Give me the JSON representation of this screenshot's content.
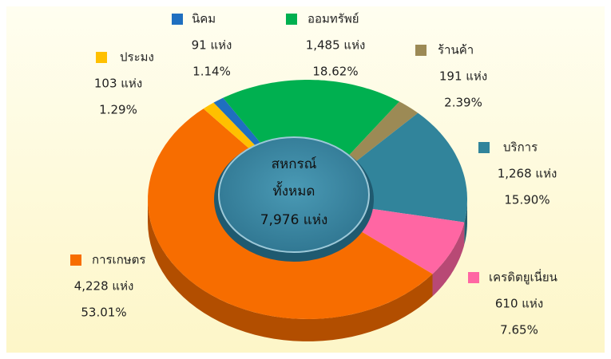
{
  "chart_data": {
    "type": "donut",
    "categories": [
      "นิคม",
      "ออมทรัพย์",
      "ร้านค้า",
      "บริการ",
      "เครดิตยูเนี่ยน",
      "การเกษตร",
      "ประมง"
    ],
    "values": [
      1.14,
      18.62,
      2.39,
      15.9,
      7.65,
      53.01,
      1.29
    ],
    "value_labels": [
      "1.14%",
      "18.62%",
      "2.39%",
      "15.90%",
      "7.65%",
      "53.01%",
      "1.29%"
    ],
    "counts": [
      91,
      1485,
      191,
      1268,
      610,
      4228,
      103
    ],
    "count_labels": [
      "91 แห่ง",
      "1,485 แห่ง",
      "191 แห่ง",
      "1,268 แห่ง",
      "610 แห่ง",
      "4,228 แห่ง",
      "103 แห่ง"
    ],
    "colors": [
      "#1f6fc0",
      "#00b050",
      "#9c8a55",
      "#31849b",
      "#ff66a3",
      "#f76d00",
      "#ffc000"
    ],
    "center_text": [
      "สหกรณ์",
      "ทั้งหมด"
    ],
    "total_label": "7,976 แห่ง"
  }
}
